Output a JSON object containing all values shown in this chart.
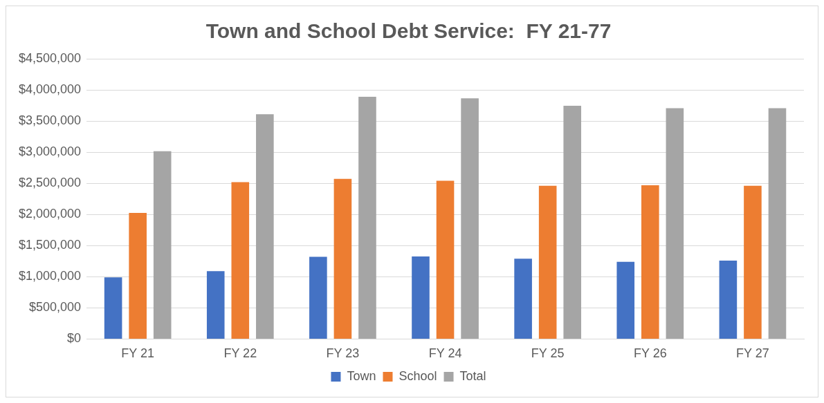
{
  "chart_data": {
    "type": "bar",
    "title": "Town and School Debt Service:  FY 21-77",
    "categories": [
      "FY 21",
      "FY 22",
      "FY 23",
      "FY 24",
      "FY 25",
      "FY 26",
      "FY 27"
    ],
    "series": [
      {
        "name": "Town",
        "color": "#4472c4",
        "values": [
          990000,
          1090000,
          1320000,
          1325000,
          1290000,
          1240000,
          1260000
        ]
      },
      {
        "name": "School",
        "color": "#ed7d31",
        "values": [
          2025000,
          2520000,
          2570000,
          2540000,
          2460000,
          2470000,
          2460000
        ]
      },
      {
        "name": "Total",
        "color": "#a5a5a5",
        "values": [
          3015000,
          3610000,
          3890000,
          3865000,
          3745000,
          3705000,
          3705000
        ]
      }
    ],
    "ylim": [
      0,
      4500000
    ],
    "yticks": [
      {
        "value": 0,
        "label": "$0"
      },
      {
        "value": 500000,
        "label": "$500,000"
      },
      {
        "value": 1000000,
        "label": "$1,000,000"
      },
      {
        "value": 1500000,
        "label": "$1,500,000"
      },
      {
        "value": 2000000,
        "label": "$2,000,000"
      },
      {
        "value": 2500000,
        "label": "$2,500,000"
      },
      {
        "value": 3000000,
        "label": "$3,000,000"
      },
      {
        "value": 3500000,
        "label": "$3,500,000"
      },
      {
        "value": 4000000,
        "label": "$4,000,000"
      },
      {
        "value": 4500000,
        "label": "$4,500,000"
      }
    ],
    "grid": "y",
    "legend": "bottom"
  }
}
